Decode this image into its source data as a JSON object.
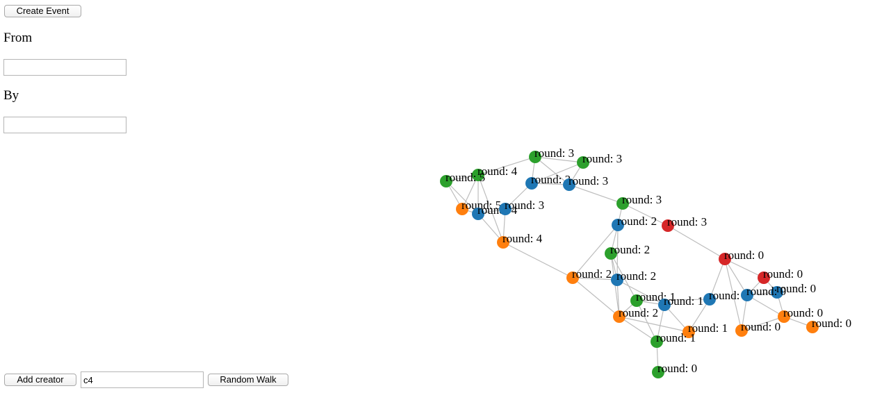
{
  "toolbar": {
    "create_event_label": "Create Event",
    "from_label": "From",
    "from_value": "",
    "by_label": "By",
    "by_value": ""
  },
  "footer": {
    "add_creator_label": "Add creator",
    "creator_value": "c4",
    "random_walk_label": "Random Walk"
  },
  "colors": {
    "green": "#2ca02c",
    "blue": "#1f77b4",
    "orange": "#ff7f0e",
    "red": "#d62728",
    "edge": "#bdbdbd"
  },
  "graph": {
    "nodes": [
      {
        "id": "g1",
        "label": "round: 3",
        "color": "green"
      },
      {
        "id": "g2",
        "label": "round: 3",
        "color": "green"
      },
      {
        "id": "g3",
        "label": "round: 4",
        "color": "green"
      },
      {
        "id": "g4",
        "label": "round: 5",
        "color": "green"
      },
      {
        "id": "b1",
        "label": "round: 3",
        "color": "blue"
      },
      {
        "id": "b2",
        "label": "round: 3",
        "color": "blue"
      },
      {
        "id": "o1",
        "label": "round: 5",
        "color": "orange"
      },
      {
        "id": "b3",
        "label": "round: 4",
        "color": "blue"
      },
      {
        "id": "b4",
        "label": "round: 3",
        "color": "blue"
      },
      {
        "id": "g5",
        "label": "round: 3",
        "color": "green"
      },
      {
        "id": "b5",
        "label": "round: 2",
        "color": "blue"
      },
      {
        "id": "r1",
        "label": "round: 3",
        "color": "red"
      },
      {
        "id": "o2",
        "label": "round: 4",
        "color": "orange"
      },
      {
        "id": "g6",
        "label": "round: 2",
        "color": "green"
      },
      {
        "id": "r2",
        "label": "round: 0",
        "color": "red"
      },
      {
        "id": "o3",
        "label": "round: 2",
        "color": "orange"
      },
      {
        "id": "b6",
        "label": "round: 2",
        "color": "blue"
      },
      {
        "id": "r3",
        "label": "round: 0",
        "color": "red"
      },
      {
        "id": "b7",
        "label": "round: 0",
        "color": "blue"
      },
      {
        "id": "b8",
        "label": "round: 0",
        "color": "blue"
      },
      {
        "id": "g7",
        "label": "round: 1",
        "color": "green"
      },
      {
        "id": "b9",
        "label": "round: 1",
        "color": "blue"
      },
      {
        "id": "b10",
        "label": "round: 0",
        "color": "blue"
      },
      {
        "id": "o4",
        "label": "round: 2",
        "color": "orange"
      },
      {
        "id": "o5",
        "label": "round: 0",
        "color": "orange"
      },
      {
        "id": "o6",
        "label": "round: 0",
        "color": "orange"
      },
      {
        "id": "o7",
        "label": "round: 0",
        "color": "orange"
      },
      {
        "id": "o8",
        "label": "round: 1",
        "color": "orange"
      },
      {
        "id": "g8",
        "label": "round: 1",
        "color": "green"
      },
      {
        "id": "g9",
        "label": "round: 0",
        "color": "green"
      }
    ],
    "edges": [
      [
        "g1",
        "g2"
      ],
      [
        "g1",
        "g3"
      ],
      [
        "g1",
        "b1"
      ],
      [
        "g1",
        "b2"
      ],
      [
        "g2",
        "b2"
      ],
      [
        "g2",
        "b1"
      ],
      [
        "g3",
        "g4"
      ],
      [
        "g3",
        "o1"
      ],
      [
        "g3",
        "o2"
      ],
      [
        "g3",
        "b3"
      ],
      [
        "g4",
        "b3"
      ],
      [
        "g4",
        "o1"
      ],
      [
        "b1",
        "b2"
      ],
      [
        "b1",
        "b4"
      ],
      [
        "b2",
        "g5"
      ],
      [
        "o1",
        "b3"
      ],
      [
        "b3",
        "b4"
      ],
      [
        "b3",
        "o2"
      ],
      [
        "b4",
        "o2"
      ],
      [
        "g5",
        "b5"
      ],
      [
        "g5",
        "r1"
      ],
      [
        "b5",
        "g6"
      ],
      [
        "b5",
        "b6"
      ],
      [
        "b5",
        "o3"
      ],
      [
        "r1",
        "r2"
      ],
      [
        "o2",
        "o3"
      ],
      [
        "g6",
        "b6"
      ],
      [
        "g6",
        "o4"
      ],
      [
        "g6",
        "g7"
      ],
      [
        "r2",
        "r3"
      ],
      [
        "r2",
        "b8"
      ],
      [
        "r2",
        "b10"
      ],
      [
        "r2",
        "o6"
      ],
      [
        "o3",
        "b6"
      ],
      [
        "o3",
        "o4"
      ],
      [
        "b6",
        "o4"
      ],
      [
        "b6",
        "b9"
      ],
      [
        "r3",
        "b7"
      ],
      [
        "r3",
        "b10"
      ],
      [
        "b7",
        "o5"
      ],
      [
        "b7",
        "b10"
      ],
      [
        "b8",
        "o8"
      ],
      [
        "b8",
        "g7"
      ],
      [
        "g7",
        "b9"
      ],
      [
        "g7",
        "o4"
      ],
      [
        "g7",
        "g8"
      ],
      [
        "b9",
        "o8"
      ],
      [
        "b9",
        "g8"
      ],
      [
        "b10",
        "o6"
      ],
      [
        "b10",
        "o5"
      ],
      [
        "o4",
        "o8"
      ],
      [
        "o5",
        "o7"
      ],
      [
        "o5",
        "o6"
      ],
      [
        "g8",
        "g9"
      ],
      [
        "g8",
        "o4"
      ]
    ]
  }
}
